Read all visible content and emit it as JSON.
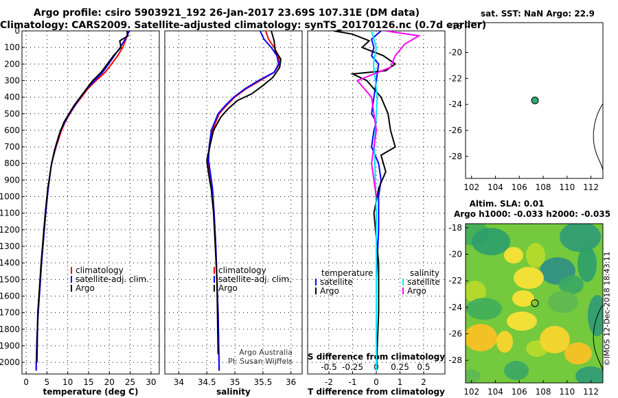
{
  "header": {
    "line1": "Argo profile: csiro 5903921_192 26-Jan-2017 23.69S 107.31E (DM data)",
    "line2": "Climatology: CARS2009. Satellite-adjusted climatology: synTS_20170126.nc (0.7d earlier)"
  },
  "footer": {
    "credit": "©IMOS 12-Dec-2018 18:43:11"
  },
  "colors": {
    "climatology": "#ff0000",
    "satellite": "#0000ff",
    "argo": "#000000",
    "satellite_s": "#00e5ff",
    "argo_s": "#ff00ff",
    "map_marker": "#2eab6e"
  },
  "chart_data": [
    {
      "id": "temperature",
      "type": "line",
      "xlabel": "temperature (deg C)",
      "ylabel": "",
      "xlim": [
        -1,
        32
      ],
      "ylim": [
        2070,
        0
      ],
      "xticks": [
        0,
        5,
        10,
        15,
        20,
        25,
        30
      ],
      "yticks": [
        0,
        100,
        200,
        300,
        400,
        500,
        600,
        700,
        800,
        900,
        1000,
        1100,
        1200,
        1300,
        1400,
        1500,
        1600,
        1700,
        1800,
        1900,
        2000
      ],
      "grid": true,
      "legend": {
        "placement": "bottom-center",
        "entries": [
          "climatology",
          "satellite-adj. clim.",
          "Argo"
        ]
      },
      "series": [
        {
          "name": "climatology",
          "x": [
            24.5,
            24.0,
            23.2,
            22.0,
            20.5,
            19.0,
            16.8,
            14.8,
            13.3,
            11.8,
            10.5,
            9.4,
            8.5,
            7.2,
            6.1,
            5.3,
            4.7,
            4.2,
            3.7,
            3.3,
            2.9,
            2.6,
            2.4
          ],
          "y": [
            0,
            50,
            100,
            150,
            200,
            250,
            300,
            350,
            400,
            450,
            500,
            550,
            600,
            700,
            800,
            950,
            1100,
            1250,
            1400,
            1550,
            1700,
            1850,
            2050
          ]
        },
        {
          "name": "satellite-adj. clim.",
          "x": [
            24.8,
            23.8,
            22.6,
            21.2,
            19.8,
            18.4,
            16.4,
            14.6,
            13.1,
            11.7,
            10.4,
            9.3,
            8.3,
            7.1,
            6.1,
            5.3,
            4.7,
            4.2,
            3.7,
            3.3,
            2.9,
            2.6,
            2.4
          ],
          "y": [
            0,
            50,
            100,
            150,
            200,
            250,
            300,
            350,
            400,
            450,
            500,
            550,
            600,
            700,
            800,
            950,
            1100,
            1250,
            1400,
            1550,
            1700,
            1850,
            2050
          ]
        },
        {
          "name": "Argo",
          "x": [
            24.2,
            24.5,
            22.5,
            22.8,
            21.0,
            19.5,
            18.0,
            16.0,
            14.5,
            13.0,
            11.5,
            10.3,
            9.1,
            8.0,
            6.8,
            6.0,
            5.2,
            4.6,
            4.1,
            3.6,
            3.2,
            2.8,
            2.6
          ],
          "y": [
            0,
            30,
            60,
            100,
            150,
            200,
            250,
            300,
            350,
            400,
            450,
            500,
            550,
            620,
            720,
            820,
            950,
            1100,
            1250,
            1400,
            1550,
            1700,
            2000
          ]
        }
      ]
    },
    {
      "id": "salinity",
      "type": "line",
      "xlabel": "salinity",
      "ylabel": "",
      "xlim": [
        33.75,
        36.2
      ],
      "ylim": [
        2070,
        0
      ],
      "xticks": [
        34,
        34.5,
        35,
        35.5,
        36
      ],
      "yticks": [
        0,
        100,
        200,
        300,
        400,
        500,
        600,
        700,
        800,
        900,
        1000,
        1100,
        1200,
        1300,
        1400,
        1500,
        1600,
        1700,
        1800,
        1900,
        2000
      ],
      "grid": true,
      "legend": {
        "placement": "bottom-center",
        "entries": [
          "climatology",
          "satellite-adj. clim.",
          "Argo"
        ]
      },
      "annotation": [
        "Argo Australia",
        "PI: Susan Wijffels"
      ],
      "series": [
        {
          "name": "climatology",
          "x": [
            35.55,
            35.6,
            35.7,
            35.78,
            35.8,
            35.7,
            35.45,
            35.2,
            35.0,
            34.85,
            34.72,
            34.6,
            34.55,
            34.52,
            34.55,
            34.6,
            34.63,
            34.66,
            34.68,
            34.7,
            34.72
          ],
          "y": [
            0,
            50,
            100,
            150,
            200,
            250,
            300,
            350,
            400,
            450,
            500,
            600,
            700,
            780,
            850,
            950,
            1100,
            1300,
            1500,
            1700,
            2050
          ]
        },
        {
          "name": "satellite-adj. clim.",
          "x": [
            35.45,
            35.52,
            35.65,
            35.75,
            35.78,
            35.7,
            35.42,
            35.18,
            34.98,
            34.83,
            34.7,
            34.58,
            34.54,
            34.53,
            34.56,
            34.6,
            34.63,
            34.66,
            34.68,
            34.7,
            34.72
          ],
          "y": [
            0,
            50,
            100,
            150,
            200,
            250,
            300,
            350,
            400,
            450,
            500,
            600,
            700,
            780,
            850,
            950,
            1100,
            1300,
            1500,
            1700,
            2050
          ]
        },
        {
          "name": "Argo",
          "x": [
            35.65,
            35.7,
            35.72,
            35.82,
            35.8,
            35.68,
            35.5,
            35.3,
            35.05,
            34.88,
            34.75,
            34.62,
            34.55,
            34.5,
            34.53,
            34.58,
            34.62,
            34.65,
            34.68,
            34.7
          ],
          "y": [
            0,
            60,
            120,
            170,
            220,
            280,
            330,
            380,
            420,
            470,
            520,
            600,
            700,
            780,
            860,
            960,
            1100,
            1300,
            1500,
            1950
          ]
        }
      ]
    },
    {
      "id": "differences",
      "type": "line",
      "xlabel": "T difference from climatology",
      "xlabel_top": "S difference from climatology",
      "xlim": [
        -2.9,
        2.9
      ],
      "ylim": [
        2070,
        0
      ],
      "xticks": [
        -2,
        -1,
        0,
        1,
        2
      ],
      "s_ticks": [
        "-0.5",
        "-0.25",
        "0",
        "0.25",
        "0.5"
      ],
      "yticks": [
        0,
        100,
        200,
        300,
        400,
        500,
        600,
        700,
        800,
        900,
        1000,
        1100,
        1200,
        1300,
        1400,
        1500,
        1600,
        1700,
        1800,
        1900,
        2000
      ],
      "grid": true,
      "legend": {
        "placement": "bottom",
        "temperature_title": "temperature",
        "salinity_title": "salinity",
        "entries_t": [
          "satellite",
          "Argo"
        ],
        "entries_s": [
          "satellite",
          "Argo"
        ]
      },
      "series": [
        {
          "name": "temperature satellite",
          "x": [
            0.2,
            -0.2,
            -0.1,
            -0.2,
            0.1,
            0.0,
            -0.1,
            -0.2,
            0.0,
            -0.1,
            -0.2,
            0.1,
            0.2,
            0.1,
            0.1,
            0.0,
            0.0,
            0.0
          ],
          "y": [
            0,
            50,
            100,
            150,
            200,
            300,
            400,
            500,
            550,
            600,
            700,
            800,
            900,
            1000,
            1200,
            1500,
            1800,
            2050
          ]
        },
        {
          "name": "temperature Argo",
          "x": [
            -1.8,
            -1.0,
            -0.3,
            -0.6,
            0.3,
            0.8,
            0.4,
            -1.0,
            -0.4,
            0.2,
            0.5,
            0.6,
            0.8,
            0.2,
            0.4,
            0.1,
            -0.1,
            0.1,
            0.1,
            0.0
          ],
          "y": [
            0,
            20,
            60,
            100,
            150,
            200,
            240,
            260,
            300,
            400,
            500,
            600,
            700,
            750,
            850,
            950,
            1100,
            1400,
            1700,
            2050
          ]
        },
        {
          "name": "salinity satellite",
          "x": [
            -0.05,
            0.0,
            -0.03,
            -0.01,
            0.01,
            0.0,
            -0.02,
            0.0,
            0.0
          ],
          "y": [
            0,
            100,
            200,
            300,
            400,
            500,
            700,
            1100,
            2050
          ]
        },
        {
          "name": "salinity Argo",
          "x": [
            0.1,
            0.45,
            0.3,
            0.2,
            0.15,
            -0.2,
            -0.05,
            0.0,
            -0.05,
            0.0
          ],
          "y": [
            0,
            30,
            80,
            150,
            220,
            300,
            400,
            600,
            800,
            1000
          ]
        }
      ]
    },
    {
      "id": "sst-map",
      "type": "scatter",
      "title": "sat. SST: NaN Argo: 22.9",
      "xlim": [
        101.5,
        113
      ],
      "ylim": [
        -29.7,
        -17.7
      ],
      "xticks": [
        102,
        104,
        106,
        108,
        110,
        112
      ],
      "yticks": [
        -18,
        -20,
        -22,
        -24,
        -26,
        -28
      ],
      "points": [
        {
          "x": 107.31,
          "y": -23.69
        }
      ]
    },
    {
      "id": "sla-map",
      "type": "heatmap",
      "title_line1": "Altim. SLA: 0.01",
      "title_line2": "Argo h1000: -0.033 h2000: -0.035",
      "xlim": [
        101.5,
        113
      ],
      "ylim": [
        -29.7,
        -17.7
      ],
      "xticks": [
        102,
        104,
        106,
        108,
        110,
        112
      ],
      "yticks": [
        -18,
        -20,
        -22,
        -24,
        -26,
        -28
      ],
      "points": [
        {
          "x": 107.31,
          "y": -23.69
        }
      ]
    }
  ]
}
